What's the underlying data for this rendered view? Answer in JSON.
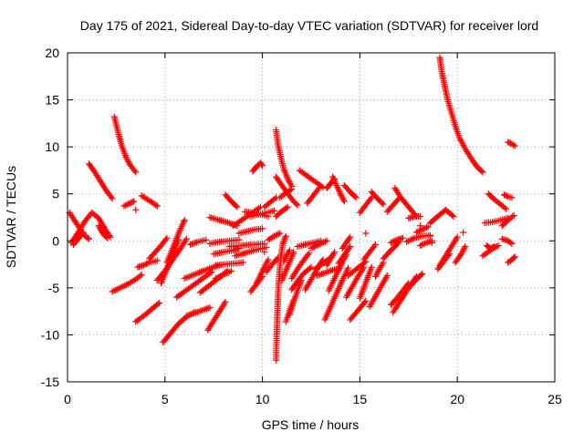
{
  "chart_data": {
    "type": "scatter",
    "title": "Day 175 of 2021, Sidereal Day-to-day VTEC variation (SDTVAR) for receiver lord",
    "xlabel": "GPS time / hours",
    "ylabel": "SDTVAR / TECUs",
    "xlim": [
      0,
      25
    ],
    "ylim": [
      -15,
      20
    ],
    "xticks": [
      0,
      5,
      10,
      15,
      20,
      25
    ],
    "yticks": [
      -15,
      -10,
      -5,
      0,
      5,
      10,
      15,
      20
    ],
    "grid": true,
    "marker": "plus",
    "color": "#ff0000",
    "tracks": [
      {
        "x": [
          0.1,
          0.35,
          0.6,
          0.85,
          1.1
        ],
        "y": [
          3.0,
          2.2,
          1.4,
          0.6,
          0.2
        ]
      },
      {
        "x": [
          0.2,
          0.55,
          0.9,
          1.25,
          1.6,
          2.0,
          2.2
        ],
        "y": [
          -0.2,
          0.9,
          2.1,
          3.0,
          2.4,
          1.0,
          0.4
        ]
      },
      {
        "x": [
          0.3,
          0.55,
          0.8
        ],
        "y": [
          -0.4,
          0.2,
          0.9
        ]
      },
      {
        "x": [
          1.1,
          1.4,
          1.7,
          2.0,
          2.3
        ],
        "y": [
          8.2,
          7.3,
          6.3,
          5.3,
          4.5
        ]
      },
      {
        "x": [
          1.6,
          1.75,
          1.9,
          2.05
        ],
        "y": [
          1.6,
          1.0,
          0.6,
          0.3
        ]
      },
      {
        "x": [
          2.4,
          2.6,
          2.8,
          3.0,
          3.2,
          3.5
        ],
        "y": [
          13.2,
          11.5,
          10.0,
          8.9,
          8.1,
          7.3
        ]
      },
      {
        "x": [
          2.3,
          2.7,
          3.1,
          3.5,
          3.8
        ],
        "y": [
          -5.4,
          -5.0,
          -4.6,
          -4.1,
          -3.6
        ]
      },
      {
        "x": [
          2.9,
          3.2,
          3.4
        ],
        "y": [
          3.7,
          4.0,
          4.2
        ]
      },
      {
        "x": [
          3.5
        ],
        "y": [
          3.3
        ]
      },
      {
        "x": [
          3.6,
          3.9,
          4.2,
          4.6
        ],
        "y": [
          -2.8,
          -2.6,
          -2.3,
          -2.1
        ]
      },
      {
        "x": [
          3.8,
          4.1,
          4.4,
          4.6
        ],
        "y": [
          4.8,
          4.4,
          4.0,
          3.7
        ]
      },
      {
        "x": [
          3.5,
          3.9,
          4.3,
          4.7
        ],
        "y": [
          -8.6,
          -8.0,
          -7.3,
          -6.6
        ]
      },
      {
        "x": [
          4.2,
          4.5,
          4.8,
          5.1
        ],
        "y": [
          -1.9,
          -1.2,
          -0.5,
          0.3
        ]
      },
      {
        "x": [
          4.6,
          5.0,
          5.4,
          5.8,
          6.1
        ],
        "y": [
          -4.2,
          -3.2,
          -2.0,
          -0.8,
          0.2
        ]
      },
      {
        "x": [
          4.8,
          5.1,
          5.4,
          5.7
        ],
        "y": [
          -4.5,
          -3.0,
          -1.4,
          0.1
        ]
      },
      {
        "x": [
          5.1,
          5.4,
          5.7,
          6.0
        ],
        "y": [
          -2.3,
          -0.8,
          0.8,
          2.2
        ]
      },
      {
        "x": [
          4.9,
          5.3,
          5.7,
          6.1,
          6.5
        ],
        "y": [
          -10.8,
          -9.8,
          -8.8,
          -8.1,
          -7.6
        ]
      },
      {
        "x": [
          5.6,
          6.2,
          6.8,
          7.4
        ],
        "y": [
          -6.0,
          -5.1,
          -4.2,
          -3.3
        ]
      },
      {
        "x": [
          6.1,
          6.5,
          6.9,
          7.3
        ],
        "y": [
          -8.0,
          -7.7,
          -7.4,
          -7.1
        ]
      },
      {
        "x": [
          6.3,
          6.7,
          7.1
        ],
        "y": [
          -0.4,
          -0.1,
          0.1
        ]
      },
      {
        "x": [
          6.0,
          6.6,
          7.2,
          7.8
        ],
        "y": [
          -4.0,
          -3.5,
          -3.0,
          -2.6
        ]
      },
      {
        "x": [
          6.8,
          7.3,
          7.8,
          8.2
        ],
        "y": [
          -5.5,
          -4.7,
          -3.9,
          -3.2
        ]
      },
      {
        "x": [
          7.2,
          7.5,
          7.8,
          8.1
        ],
        "y": [
          -9.5,
          -8.5,
          -7.5,
          -6.5
        ]
      },
      {
        "x": [
          7.5,
          8.0,
          8.5,
          8.8
        ],
        "y": [
          -1.4,
          -1.2,
          -1.0,
          -0.8
        ]
      },
      {
        "x": [
          7.6,
          8.1,
          8.6,
          9.0
        ],
        "y": [
          -2.6,
          -2.5,
          -2.4,
          -2.3
        ]
      },
      {
        "x": [
          7.6,
          8.0,
          8.4
        ],
        "y": [
          -4.0,
          -3.6,
          -3.2
        ]
      },
      {
        "x": [
          7.3,
          7.8,
          8.3,
          8.7
        ],
        "y": [
          2.5,
          2.2,
          1.9,
          1.6
        ]
      },
      {
        "x": [
          7.3,
          7.8,
          8.3,
          8.8
        ],
        "y": [
          -0.3,
          -0.1,
          0.0,
          0.1
        ]
      },
      {
        "x": [
          8.3,
          8.9,
          9.5,
          10.1
        ],
        "y": [
          -0.6,
          -0.5,
          -0.4,
          -0.3
        ]
      },
      {
        "x": [
          8.6,
          9.1,
          9.6,
          10.2
        ],
        "y": [
          -1.6,
          -1.3,
          -1.0,
          -0.7
        ]
      },
      {
        "x": [
          8.5,
          9.0,
          9.5,
          9.9
        ],
        "y": [
          1.6,
          2.3,
          3.0,
          3.6
        ]
      },
      {
        "x": [
          8.8,
          9.2,
          9.6,
          10.0
        ],
        "y": [
          0.8,
          1.0,
          1.2,
          1.3
        ]
      },
      {
        "x": [
          8.1,
          8.4,
          8.7
        ],
        "y": [
          4.9,
          4.2,
          3.6
        ]
      },
      {
        "x": [
          9.1,
          9.5,
          9.9,
          10.3
        ],
        "y": [
          3.1,
          3.0,
          2.8,
          2.6
        ]
      },
      {
        "x": [
          9.4,
          9.8,
          10.2,
          10.6
        ],
        "y": [
          2.6,
          2.8,
          3.0,
          3.2
        ]
      },
      {
        "x": [
          9.5,
          9.7,
          9.9,
          10.0
        ],
        "y": [
          7.4,
          7.9,
          8.3,
          8.0
        ]
      },
      {
        "x": [
          10.1,
          10.4,
          10.7
        ],
        "y": [
          3.6,
          4.1,
          4.6
        ]
      },
      {
        "x": [
          10.1
        ],
        "y": [
          -1.2
        ]
      },
      {
        "x": [
          10.3,
          10.6,
          10.9
        ],
        "y": [
          0.1,
          0.5,
          0.8
        ]
      },
      {
        "x": [
          9.7,
          10.0,
          10.3
        ],
        "y": [
          -4.5,
          -3.2,
          -2.0
        ]
      },
      {
        "x": [
          9.4,
          9.7,
          10.0
        ],
        "y": [
          -5.4,
          -4.6,
          -3.8
        ]
      },
      {
        "x": [
          10.2,
          10.5,
          10.8
        ],
        "y": [
          -3.3,
          -2.5,
          -1.8
        ]
      },
      {
        "x": [
          10.7,
          10.72,
          10.75,
          10.78,
          10.82,
          10.88,
          10.95,
          11.05,
          11.2
        ],
        "y": [
          -12.7,
          -11.0,
          -9.0,
          -7.0,
          -5.0,
          -3.2,
          -1.6,
          -0.3,
          0.5
        ]
      },
      {
        "x": [
          10.7,
          10.8,
          10.95,
          11.1,
          11.3,
          11.5
        ],
        "y": [
          11.8,
          10.2,
          8.8,
          7.6,
          6.6,
          5.8
        ]
      },
      {
        "x": [
          10.7,
          11.0,
          11.3,
          11.6,
          11.8
        ],
        "y": [
          6.8,
          5.9,
          5.0,
          4.2,
          3.8
        ]
      },
      {
        "x": [
          10.9,
          11.2,
          11.5
        ],
        "y": [
          4.6,
          5.1,
          5.5
        ]
      },
      {
        "x": [
          10.7,
          10.9,
          11.1,
          11.3
        ],
        "y": [
          2.6,
          3.0,
          3.3,
          3.6
        ]
      },
      {
        "x": [
          11.0,
          11.2,
          11.4,
          11.6
        ],
        "y": [
          -4.2,
          -3.2,
          -2.2,
          -1.2
        ]
      },
      {
        "x": [
          11.1,
          11.25,
          11.4
        ],
        "y": [
          -2.2,
          -1.5,
          -1.0
        ]
      },
      {
        "x": [
          11.2,
          11.4,
          11.6
        ],
        "y": [
          -8.6,
          -7.4,
          -6.3
        ]
      },
      {
        "x": [
          11.4,
          11.6,
          11.8,
          12.0
        ],
        "y": [
          -7.8,
          -6.5,
          -5.3,
          -4.2
        ]
      },
      {
        "x": [
          11.5,
          11.8,
          12.1,
          12.5
        ],
        "y": [
          -5.2,
          -4.3,
          -3.5,
          -2.8
        ]
      },
      {
        "x": [
          11.5,
          11.8,
          12.1,
          12.4
        ],
        "y": [
          -4.0,
          -3.0,
          -2.1,
          -1.3
        ]
      },
      {
        "x": [
          12.2,
          12.5,
          12.8,
          13.1
        ],
        "y": [
          -5.2,
          -4.1,
          -3.0,
          -2.0
        ]
      },
      {
        "x": [
          11.8,
          12.2,
          12.6,
          13.0
        ],
        "y": [
          -0.6,
          -0.4,
          -0.2,
          0.0
        ]
      },
      {
        "x": [
          11.9,
          12.3,
          12.7,
          13.1
        ],
        "y": [
          7.5,
          6.9,
          6.3,
          5.7
        ]
      },
      {
        "x": [
          12.3,
          12.6,
          12.9
        ],
        "y": [
          4.0,
          4.8,
          5.6
        ]
      },
      {
        "x": [
          12.5,
          12.9,
          13.3
        ],
        "y": [
          -0.8,
          -0.4,
          0.0
        ]
      },
      {
        "x": [
          12.7,
          13.1,
          13.5
        ],
        "y": [
          -3.0,
          -2.4,
          -1.8
        ]
      },
      {
        "x": [
          12.8,
          13.2,
          13.6,
          14.0
        ],
        "y": [
          -3.7,
          -3.4,
          -3.1,
          -2.9
        ]
      },
      {
        "x": [
          13.2,
          13.5,
          13.8,
          14.1,
          14.4
        ],
        "y": [
          -8.4,
          -7.0,
          -5.6,
          -4.2,
          -2.9
        ]
      },
      {
        "x": [
          13.4,
          13.7,
          14.0,
          14.3
        ],
        "y": [
          -5.3,
          -4.0,
          -2.7,
          -1.5
        ]
      },
      {
        "x": [
          13.3,
          13.5,
          13.7
        ],
        "y": [
          -2.6,
          -1.9,
          -1.2
        ]
      },
      {
        "x": [
          13.3,
          13.5,
          13.7
        ],
        "y": [
          5.6,
          6.1,
          6.6
        ]
      },
      {
        "x": [
          13.6,
          13.8,
          14.0,
          14.2
        ],
        "y": [
          6.8,
          5.9,
          5.0,
          4.2
        ]
      },
      {
        "x": [
          13.9,
          14.2,
          14.5
        ],
        "y": [
          -2.4,
          -1.5,
          -0.6
        ]
      },
      {
        "x": [
          14.1,
          14.3,
          14.5
        ],
        "y": [
          -0.8,
          -0.2,
          0.4
        ]
      },
      {
        "x": [
          14.3,
          14.6,
          14.9,
          15.2
        ],
        "y": [
          -6.0,
          -4.9,
          -3.8,
          -2.8
        ]
      },
      {
        "x": [
          14.4,
          14.7,
          15.0,
          15.3
        ],
        "y": [
          -3.7,
          -3.2,
          -2.7,
          -2.2
        ]
      },
      {
        "x": [
          14.2,
          14.5,
          14.8
        ],
        "y": [
          5.9,
          5.2,
          4.6
        ]
      },
      {
        "x": [
          14.5,
          14.9,
          15.3
        ],
        "y": [
          -8.4,
          -7.4,
          -6.4
        ]
      },
      {
        "x": [
          15.0,
          15.2,
          15.4,
          15.6
        ],
        "y": [
          -6.1,
          -5.0,
          -3.9,
          -2.8
        ]
      },
      {
        "x": [
          15.0,
          15.3,
          15.6
        ],
        "y": [
          3.0,
          3.8,
          4.6
        ]
      },
      {
        "x": [
          15.2,
          15.5,
          15.8
        ],
        "y": [
          -2.0,
          -1.2,
          -0.4
        ]
      },
      {
        "x": [
          15.3
        ],
        "y": [
          0.8
        ]
      },
      {
        "x": [
          15.5,
          15.8,
          16.1,
          16.4
        ],
        "y": [
          -7.0,
          -5.9,
          -4.8,
          -3.7
        ]
      },
      {
        "x": [
          15.6,
          15.9,
          16.2
        ],
        "y": [
          5.2,
          4.5,
          3.9
        ]
      },
      {
        "x": [
          15.8,
          16.0,
          16.2
        ],
        "y": [
          -3.8,
          -3.0,
          -2.3
        ]
      },
      {
        "x": [
          16.2,
          16.5,
          16.8,
          17.0
        ],
        "y": [
          -1.9,
          -1.2,
          -0.6,
          -0.1
        ]
      },
      {
        "x": [
          16.4,
          16.7,
          17.0
        ],
        "y": [
          3.1,
          3.8,
          4.5
        ]
      },
      {
        "x": [
          16.6,
          16.9,
          17.2,
          17.5
        ],
        "y": [
          -6.8,
          -6.1,
          -5.3,
          -4.5
        ]
      },
      {
        "x": [
          16.6,
          16.9,
          17.2
        ],
        "y": [
          -0.2,
          0.1,
          0.3
        ]
      },
      {
        "x": [
          16.7,
          17.1,
          17.5,
          17.9
        ],
        "y": [
          -7.6,
          -6.3,
          -5.0,
          -3.8
        ]
      },
      {
        "x": [
          16.8,
          17.1,
          17.5,
          17.9
        ],
        "y": [
          5.6,
          4.6,
          3.6,
          2.6
        ]
      },
      {
        "x": [
          17.4,
          17.8,
          18.2,
          18.6
        ],
        "y": [
          -0.1,
          0.3,
          0.5,
          0.6
        ]
      },
      {
        "x": [
          17.5,
          17.8,
          18.1
        ],
        "y": [
          2.4,
          2.6,
          2.6
        ]
      },
      {
        "x": [
          17.6,
          17.9,
          18.2
        ],
        "y": [
          -4.8,
          -4.1,
          -3.5
        ]
      },
      {
        "x": [
          17.9,
          18.2,
          18.5
        ],
        "y": [
          0.9,
          1.2,
          1.5
        ]
      },
      {
        "x": [
          18.1
        ],
        "y": [
          1.6
        ]
      },
      {
        "x": [
          18.1,
          18.4,
          18.7
        ],
        "y": [
          -0.5,
          -0.2,
          0.0
        ]
      },
      {
        "x": [
          18.6,
          19.0,
          19.4,
          19.8
        ],
        "y": [
          1.9,
          2.6,
          3.3,
          2.6
        ]
      },
      {
        "x": [
          18.6
        ],
        "y": [
          0.5
        ]
      },
      {
        "x": [
          18.7
        ],
        "y": [
          -0.2
        ]
      },
      {
        "x": [
          19.0,
          19.3,
          19.6
        ],
        "y": [
          -3.0,
          -2.2,
          -1.4
        ]
      },
      {
        "x": [
          19.1,
          19.4,
          19.7,
          20.0
        ],
        "y": [
          -2.6,
          -1.6,
          -0.6,
          0.4
        ]
      },
      {
        "x": [
          19.1,
          19.2,
          19.35,
          19.5,
          19.7,
          19.9,
          20.1,
          20.4,
          20.7,
          21.0,
          21.3
        ],
        "y": [
          19.5,
          18.0,
          16.5,
          15.0,
          13.6,
          12.2,
          11.0,
          9.8,
          8.8,
          7.9,
          7.3
        ]
      },
      {
        "x": [
          19.9,
          20.2,
          20.4
        ],
        "y": [
          -2.3,
          -1.4,
          -0.6
        ]
      },
      {
        "x": [
          20.3
        ],
        "y": [
          0.9
        ]
      },
      {
        "x": [
          21.3,
          21.7,
          22.1
        ],
        "y": [
          -1.6,
          -1.0,
          -0.5
        ]
      },
      {
        "x": [
          21.5,
          21.7,
          21.9
        ],
        "y": [
          -0.5,
          -0.8,
          -0.6
        ]
      },
      {
        "x": [
          21.4,
          21.8,
          22.2,
          22.6
        ],
        "y": [
          1.9,
          2.0,
          2.2,
          2.4
        ]
      },
      {
        "x": [
          21.6,
          21.9,
          22.2,
          22.5
        ],
        "y": [
          5.0,
          4.4,
          3.9,
          3.4
        ]
      },
      {
        "x": [
          22.3,
          22.6,
          22.9
        ],
        "y": [
          1.6,
          2.2,
          2.7
        ]
      },
      {
        "x": [
          22.3,
          22.6,
          22.8
        ],
        "y": [
          0.2,
          0.0,
          -0.3
        ]
      },
      {
        "x": [
          22.4,
          22.6,
          22.8
        ],
        "y": [
          4.9,
          4.7,
          4.6
        ]
      },
      {
        "x": [
          22.6,
          22.8,
          22.95
        ],
        "y": [
          10.5,
          10.3,
          10.1
        ]
      },
      {
        "x": [
          22.6,
          22.8,
          22.95
        ],
        "y": [
          -2.3,
          -2.0,
          -1.7
        ]
      }
    ]
  }
}
